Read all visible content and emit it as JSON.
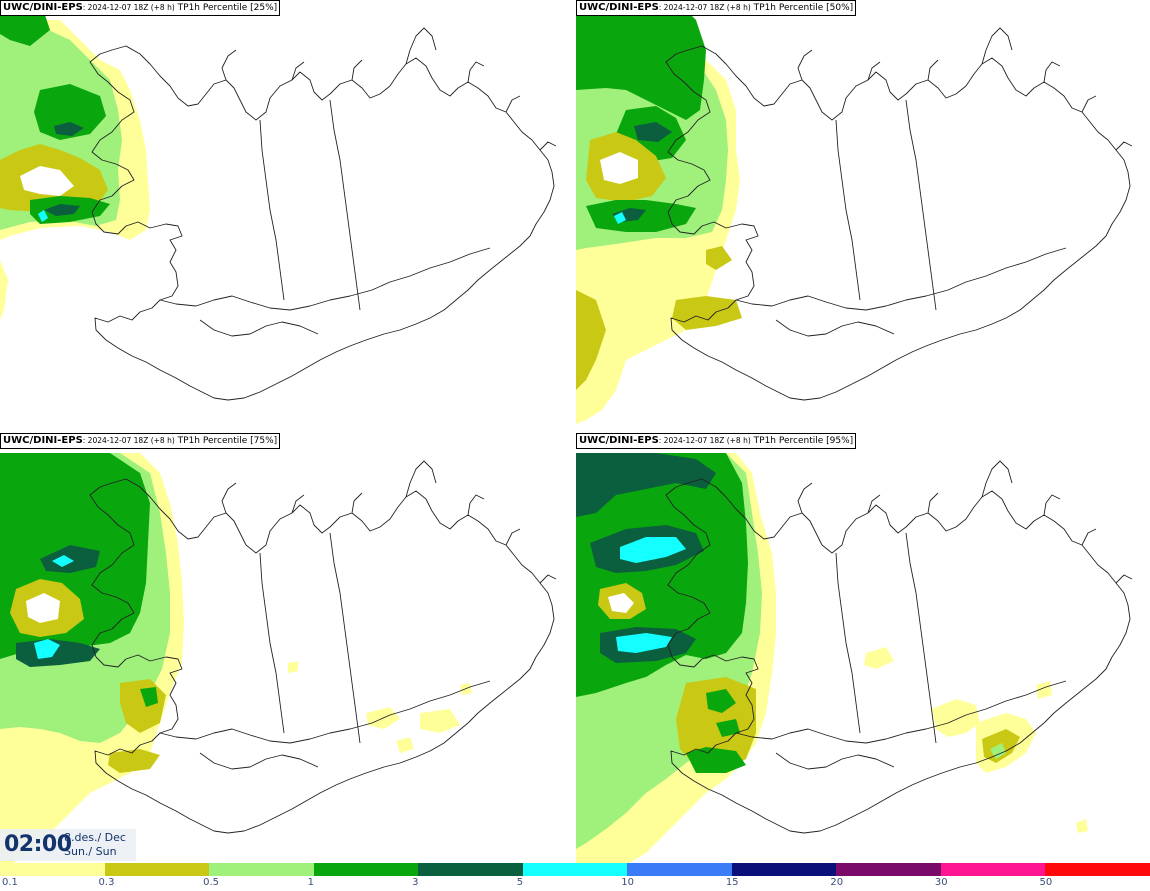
{
  "panels": [
    {
      "model": "UWC/DINI-EPS",
      "run": ": 2024-12-07 18Z (+8 h)",
      "field": "TP1h Percentile [25%]"
    },
    {
      "model": "UWC/DINI-EPS",
      "run": ": 2024-12-07 18Z (+8 h)",
      "field": "TP1h Percentile [50%]"
    },
    {
      "model": "UWC/DINI-EPS",
      "run": ": 2024-12-07 18Z (+8 h)",
      "field": "TP1h Percentile [75%]"
    },
    {
      "model": "UWC/DINI-EPS",
      "run": ": 2024-12-07 18Z (+8 h)",
      "field": "TP1h Percentile [95%]"
    }
  ],
  "time_box": {
    "time": "02:00",
    "date_line1": "8.des./ Dec",
    "date_line2": "Sun./ Sun"
  },
  "legend": {
    "levels": [
      "0.1",
      "0.3",
      "0.5",
      "1",
      "3",
      "5",
      "10",
      "15",
      "20",
      "30",
      "50"
    ],
    "colors": [
      "#ffff9a",
      "#c9c814",
      "#a0f07c",
      "#0aa60e",
      "#0b5e3e",
      "#14ffff",
      "#3a7cf6",
      "#0a0f7a",
      "#7a0a6a",
      "#ff1592",
      "#ff0a0a"
    ]
  },
  "colors": {
    "land_outline": "#222222",
    "background": "#ffffff",
    "text_dark_blue": "#12336b"
  }
}
